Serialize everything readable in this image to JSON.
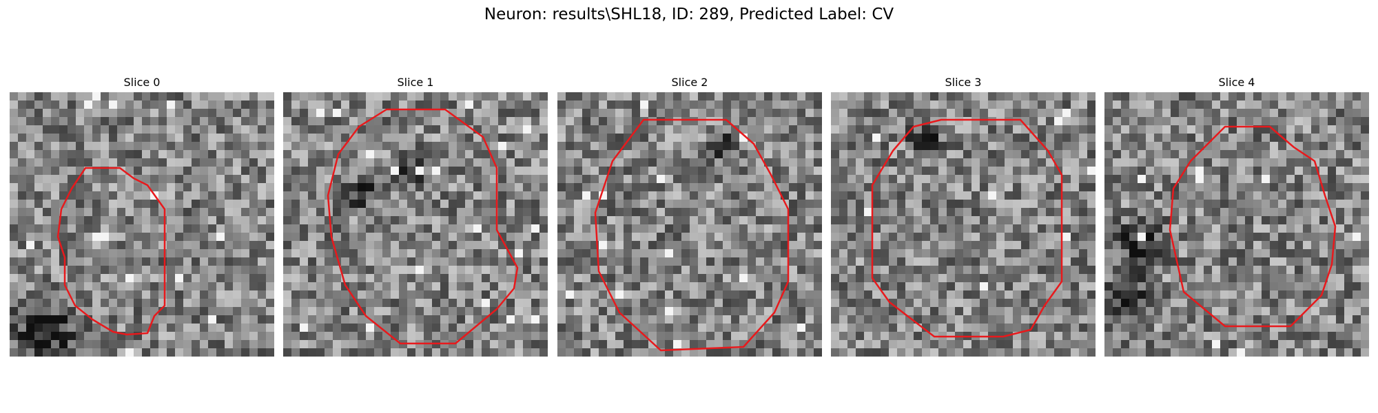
{
  "figure": {
    "title": "Neuron: results\\SHL18, ID: 289, Predicted Label: CV",
    "contour_color": "#e8191c"
  },
  "slices": [
    {
      "title": "Slice 0"
    },
    {
      "title": "Slice 1"
    },
    {
      "title": "Slice 2"
    },
    {
      "title": "Slice 3"
    },
    {
      "title": "Slice 4"
    }
  ]
}
